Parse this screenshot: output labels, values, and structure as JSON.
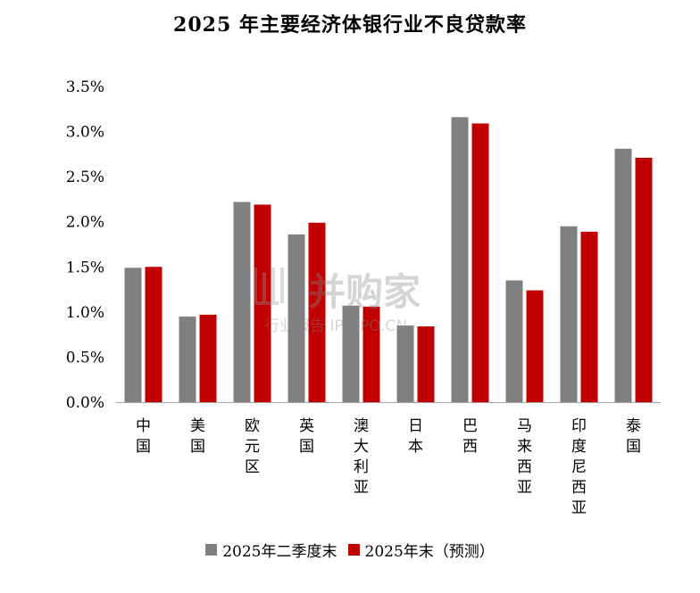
{
  "chart_data": {
    "type": "bar",
    "title": "2025 年主要经济体银行业不良贷款率",
    "categories": [
      "中国",
      "美国",
      "欧元区",
      "英国",
      "澳大利亚",
      "日本",
      "巴西",
      "马来西亚",
      "印度尼西亚",
      "泰国"
    ],
    "series": [
      {
        "name": "2025年二季度末",
        "color": "#808080",
        "values": [
          1.49,
          0.95,
          2.22,
          1.86,
          1.07,
          0.85,
          3.16,
          1.35,
          1.95,
          2.81
        ]
      },
      {
        "name": "2025年末（预测）",
        "color": "#C00000",
        "values": [
          1.5,
          0.97,
          2.19,
          1.99,
          1.06,
          0.84,
          3.09,
          1.24,
          1.89,
          2.71
        ]
      }
    ],
    "yticks": [
      "0.0%",
      "0.5%",
      "1.0%",
      "1.5%",
      "2.0%",
      "2.5%",
      "3.0%",
      "3.5%"
    ],
    "ylim": [
      0,
      3.5
    ],
    "grid": false,
    "legend_position": "bottom"
  },
  "watermark": {
    "line1": "并购家",
    "line2": "行业报告 IPOIPO.CN"
  }
}
